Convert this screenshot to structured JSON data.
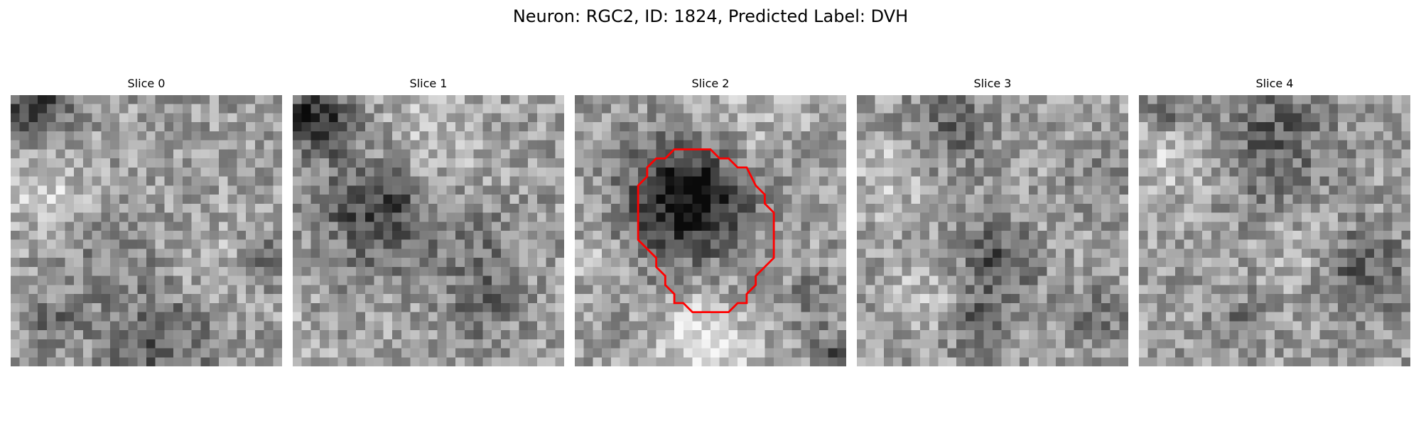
{
  "figure": {
    "title": "Neuron: RGC2, ID: 1824, Predicted Label: DVH"
  },
  "colors": {
    "background": "#ffffff",
    "contour": "#ff0000",
    "colormap": "grayscale"
  },
  "panels": [
    {
      "title": "Slice 0",
      "has_contour": false
    },
    {
      "title": "Slice 1",
      "has_contour": false
    },
    {
      "title": "Slice 2",
      "has_contour": true
    },
    {
      "title": "Slice 3",
      "has_contour": false
    },
    {
      "title": "Slice 4",
      "has_contour": false
    }
  ]
}
